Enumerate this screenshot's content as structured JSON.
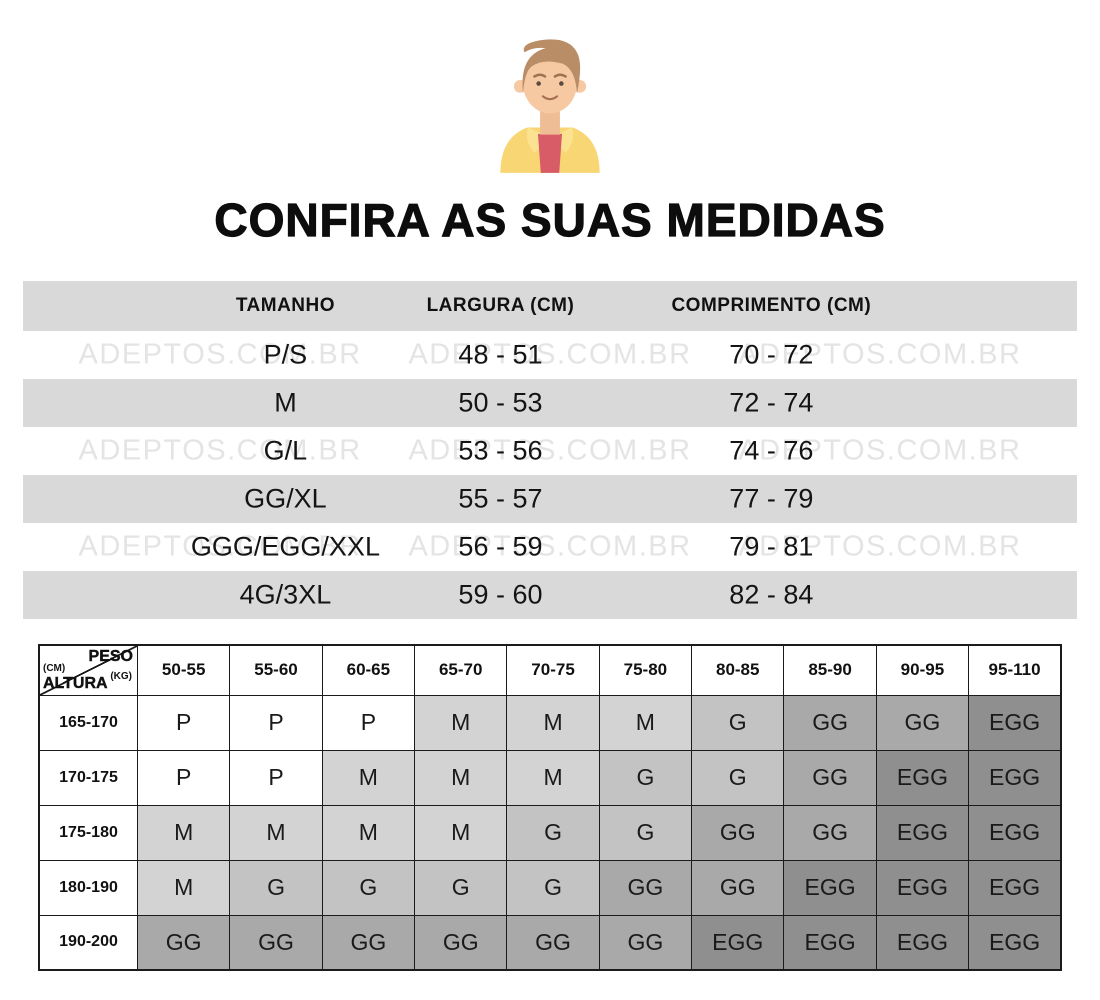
{
  "title": "CONFIRA AS SUAS MEDIDAS",
  "watermark": "ADEPTOS.COM.BR",
  "size_table": {
    "headers": [
      "TAMANHO",
      "LARGURA (CM)",
      "COMPRIMENTO (CM)"
    ],
    "rows": [
      [
        "P/S",
        "48 - 51",
        "70 - 72"
      ],
      [
        "M",
        "50 - 53",
        "72 - 74"
      ],
      [
        "G/L",
        "53 - 56",
        "74 - 76"
      ],
      [
        "GG/XL",
        "55 - 57",
        "77 - 79"
      ],
      [
        "GGG/EGG/XXL",
        "56 - 59",
        "79 - 81"
      ],
      [
        "4G/3XL",
        "59 - 60",
        "82 - 84"
      ]
    ]
  },
  "matrix_table": {
    "corner": {
      "top_label": "PESO",
      "top_unit": "(KG)",
      "side_label": "ALTURA",
      "side_unit": "(CM)"
    },
    "weight_ranges_kg": [
      "50-55",
      "55-60",
      "60-65",
      "65-70",
      "70-75",
      "75-80",
      "80-85",
      "85-90",
      "90-95",
      "95-110"
    ],
    "rows": [
      {
        "height_cm": "165-170",
        "sizes": [
          "P",
          "P",
          "P",
          "M",
          "M",
          "M",
          "G",
          "GG",
          "GG",
          "EGG"
        ]
      },
      {
        "height_cm": "170-175",
        "sizes": [
          "P",
          "P",
          "M",
          "M",
          "M",
          "G",
          "G",
          "GG",
          "EGG",
          "EGG"
        ]
      },
      {
        "height_cm": "175-180",
        "sizes": [
          "M",
          "M",
          "M",
          "M",
          "G",
          "G",
          "GG",
          "GG",
          "EGG",
          "EGG"
        ]
      },
      {
        "height_cm": "180-190",
        "sizes": [
          "M",
          "G",
          "G",
          "G",
          "G",
          "GG",
          "GG",
          "EGG",
          "EGG",
          "EGG"
        ]
      },
      {
        "height_cm": "190-200",
        "sizes": [
          "GG",
          "GG",
          "GG",
          "GG",
          "GG",
          "GG",
          "EGG",
          "EGG",
          "EGG",
          "EGG"
        ]
      }
    ]
  },
  "colors": {
    "row_stripe": "#d9d9d9",
    "watermark": "#e4e4e4",
    "table_border": "#1b1b1b",
    "size_P": "#ffffff",
    "size_M": "#d3d3d3",
    "size_G": "#c3c3c3",
    "size_GG": "#a9a9a9",
    "size_EGG": "#8f8f8f",
    "avatar_skin": "#f6c9a3",
    "avatar_skin_shadow": "#efbd95",
    "avatar_hair": "#b98e66",
    "avatar_jacket": "#f9d674",
    "avatar_collar": "#fbe291",
    "avatar_shirt": "#d85c68"
  }
}
